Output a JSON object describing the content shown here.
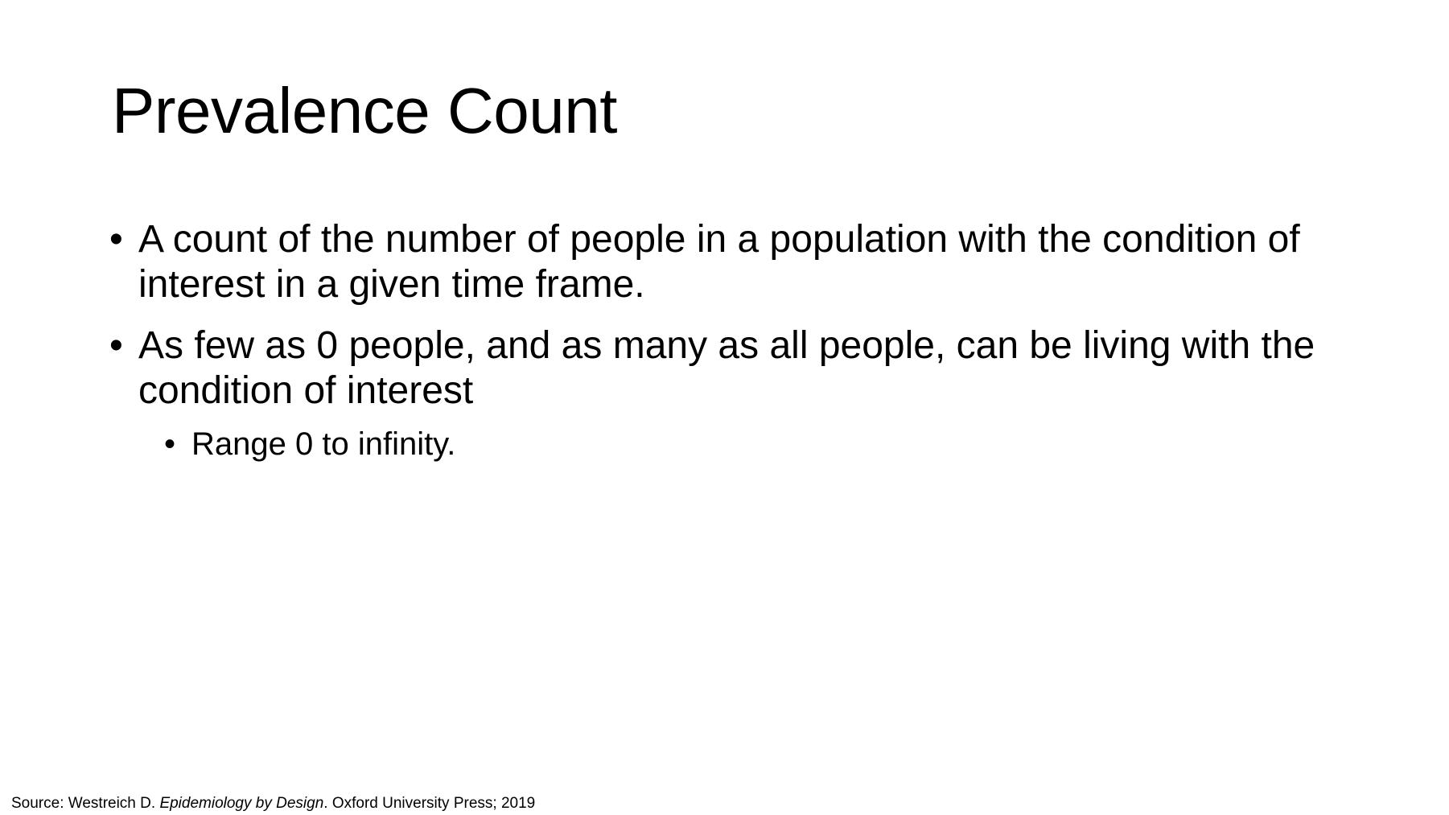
{
  "slide": {
    "title": "Prevalence Count",
    "bullets": [
      {
        "text": "A count of the number of people in a population with the condition of interest in a given time frame."
      },
      {
        "text": "As few as 0 people, and as many as all people, can be living with the condition of interest",
        "sub_bullets": [
          "Range 0 to infinity."
        ]
      }
    ],
    "source": {
      "prefix": "Source: Westreich D. ",
      "book_title": "Epidemiology by Design",
      "suffix": ". Oxford University Press; 2019"
    }
  }
}
